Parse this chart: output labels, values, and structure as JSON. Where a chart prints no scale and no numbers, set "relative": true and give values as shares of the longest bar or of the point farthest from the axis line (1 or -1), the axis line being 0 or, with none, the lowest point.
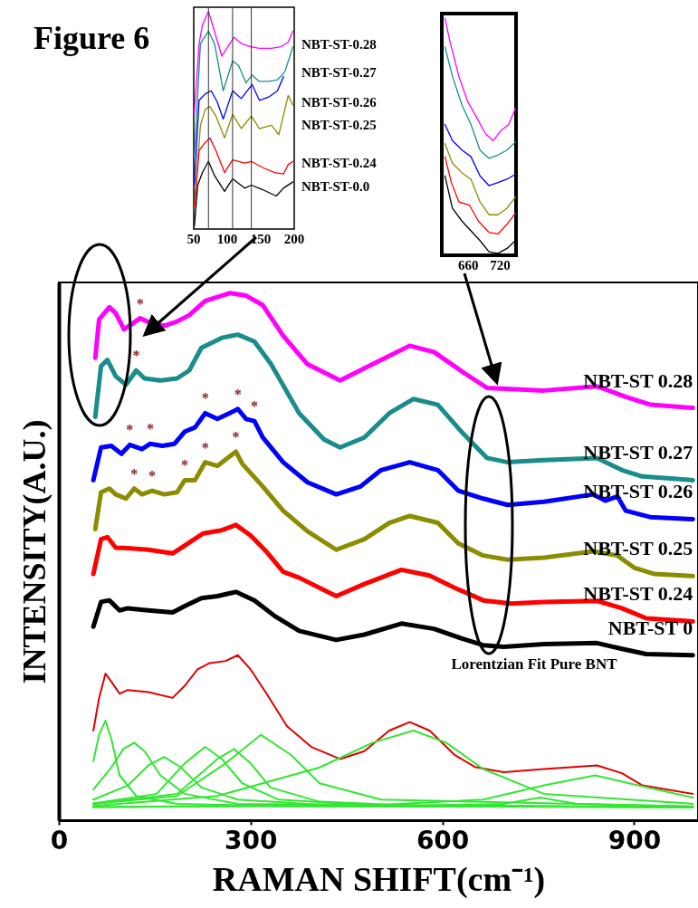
{
  "chart_data": [
    {
      "type": "line",
      "title": "Figure 6",
      "xlabel": "RAMAN SHIFT(cm⁻¹)",
      "ylabel": "INTENSITY(A.U.)",
      "relative": true,
      "xlim": [
        0,
        1000
      ],
      "xticks": [
        0,
        300,
        600,
        900
      ],
      "annotations": [
        "Lorentzian Fit Pure BNT",
        {
          "text": "*",
          "x": 127,
          "y": 0.952
        },
        {
          "text": "*",
          "x": 121,
          "y": 0.853
        },
        {
          "text": "*",
          "x": 111,
          "y": 0.712
        },
        {
          "text": "*",
          "x": 143,
          "y": 0.714
        },
        {
          "text": "*",
          "x": 229,
          "y": 0.772
        },
        {
          "text": "*",
          "x": 280,
          "y": 0.78
        },
        {
          "text": "*",
          "x": 306,
          "y": 0.757
        },
        {
          "text": "*",
          "x": 118,
          "y": 0.629
        },
        {
          "text": "*",
          "x": 146,
          "y": 0.625
        },
        {
          "text": "*",
          "x": 197,
          "y": 0.645
        },
        {
          "text": "*",
          "x": 229,
          "y": 0.679
        },
        {
          "text": "*",
          "x": 277,
          "y": 0.699
        }
      ],
      "series": [
        {
          "name": "NBT-ST 0.28",
          "color": "#ff00ff",
          "x": [
            57,
            63,
            79,
            89,
            102,
            127,
            146,
            165,
            185,
            204,
            229,
            268,
            293,
            319,
            351,
            389,
            440,
            491,
            549,
            587,
            632,
            670,
            759,
            842,
            887,
            926,
            992
          ],
          "values": [
            0.877,
            0.95,
            0.973,
            0.962,
            0.931,
            0.952,
            0.942,
            0.938,
            0.946,
            0.958,
            0.985,
            1.0,
            0.995,
            0.977,
            0.919,
            0.865,
            0.834,
            0.865,
            0.9,
            0.888,
            0.85,
            0.82,
            0.815,
            0.823,
            0.803,
            0.788,
            0.782
          ]
        },
        {
          "name": "NBT-ST 0.27",
          "color": "#1a8c8c",
          "x": [
            57,
            66,
            76,
            89,
            105,
            121,
            134,
            159,
            185,
            204,
            223,
            255,
            280,
            306,
            332,
            376,
            415,
            440,
            478,
            517,
            555,
            593,
            632,
            670,
            702,
            759,
            842,
            881,
            913,
            992
          ],
          "values": [
            0.765,
            0.861,
            0.873,
            0.842,
            0.826,
            0.853,
            0.838,
            0.834,
            0.838,
            0.853,
            0.896,
            0.915,
            0.921,
            0.908,
            0.865,
            0.772,
            0.722,
            0.707,
            0.726,
            0.772,
            0.799,
            0.788,
            0.734,
            0.687,
            0.679,
            0.683,
            0.687,
            0.664,
            0.652,
            0.645
          ]
        },
        {
          "name": "NBT-ST 0.26",
          "color": "#0000ff",
          "x": [
            54,
            66,
            82,
            98,
            111,
            130,
            143,
            162,
            181,
            197,
            213,
            229,
            248,
            274,
            280,
            293,
            306,
            319,
            351,
            389,
            434,
            472,
            504,
            549,
            593,
            625,
            664,
            702,
            759,
            836,
            855,
            874,
            887,
            925,
            992
          ],
          "values": [
            0.645,
            0.707,
            0.71,
            0.695,
            0.712,
            0.704,
            0.714,
            0.71,
            0.714,
            0.737,
            0.745,
            0.772,
            0.761,
            0.776,
            0.78,
            0.761,
            0.757,
            0.726,
            0.679,
            0.641,
            0.618,
            0.633,
            0.664,
            0.679,
            0.664,
            0.625,
            0.61,
            0.598,
            0.604,
            0.618,
            0.606,
            0.614,
            0.587,
            0.575,
            0.571
          ]
        },
        {
          "name": "NBT-ST 0.25",
          "color": "#8c8c00",
          "x": [
            57,
            66,
            79,
            89,
            105,
            118,
            130,
            146,
            165,
            185,
            197,
            213,
            229,
            248,
            277,
            287,
            319,
            351,
            389,
            434,
            478,
            517,
            549,
            593,
            625,
            664,
            702,
            759,
            836,
            874,
            900,
            932,
            992
          ],
          "values": [
            0.552,
            0.622,
            0.629,
            0.618,
            0.61,
            0.629,
            0.618,
            0.625,
            0.618,
            0.622,
            0.645,
            0.645,
            0.679,
            0.672,
            0.699,
            0.676,
            0.633,
            0.587,
            0.548,
            0.513,
            0.533,
            0.564,
            0.577,
            0.564,
            0.525,
            0.502,
            0.494,
            0.498,
            0.51,
            0.502,
            0.479,
            0.467,
            0.463
          ]
        },
        {
          "name": "NBT-ST 0.24",
          "color": "#ff0000",
          "x": [
            54,
            66,
            76,
            89,
            108,
            140,
            178,
            197,
            226,
            255,
            277,
            300,
            325,
            351,
            376,
            434,
            478,
            536,
            580,
            619,
            664,
            708,
            759,
            842,
            881,
            919,
            992
          ],
          "values": [
            0.467,
            0.533,
            0.537,
            0.517,
            0.516,
            0.513,
            0.506,
            0.521,
            0.544,
            0.55,
            0.56,
            0.54,
            0.509,
            0.471,
            0.46,
            0.425,
            0.448,
            0.475,
            0.464,
            0.441,
            0.417,
            0.411,
            0.414,
            0.416,
            0.402,
            0.383,
            0.377
          ]
        },
        {
          "name": "NBT-ST 0",
          "color": "#000000",
          "x": [
            54,
            66,
            79,
            95,
            108,
            140,
            178,
            197,
            223,
            248,
            277,
            306,
            338,
            376,
            434,
            478,
            536,
            587,
            632,
            664,
            696,
            759,
            842,
            881,
            919,
            992
          ],
          "values": [
            0.367,
            0.414,
            0.417,
            0.398,
            0.402,
            0.398,
            0.394,
            0.406,
            0.421,
            0.425,
            0.433,
            0.417,
            0.387,
            0.359,
            0.342,
            0.352,
            0.373,
            0.363,
            0.344,
            0.332,
            0.329,
            0.334,
            0.336,
            0.325,
            0.315,
            0.313
          ]
        },
        {
          "color": "#e00000",
          "x": [
            54,
            63,
            73,
            82,
            95,
            108,
            140,
            178,
            197,
            217,
            236,
            261,
            280,
            300,
            325,
            357,
            395,
            440,
            478,
            517,
            549,
            580,
            619,
            651,
            696,
            759,
            842,
            881,
            913,
            992
          ],
          "values": [
            0.17,
            0.232,
            0.278,
            0.263,
            0.24,
            0.247,
            0.243,
            0.232,
            0.255,
            0.286,
            0.298,
            0.302,
            0.313,
            0.286,
            0.24,
            0.178,
            0.139,
            0.116,
            0.131,
            0.17,
            0.186,
            0.17,
            0.124,
            0.101,
            0.091,
            0.097,
            0.104,
            0.089,
            0.066,
            0.05
          ]
        },
        {
          "color": "#33e633",
          "x": [
            54,
            63,
            73,
            82,
            95,
            121,
            185,
            376,
            992
          ],
          "values": [
            0.112,
            0.162,
            0.189,
            0.155,
            0.085,
            0.046,
            0.031,
            0.026,
            0.025
          ]
        },
        {
          "color": "#33e633",
          "x": [
            54,
            82,
            101,
            118,
            134,
            159,
            197,
            280,
            992
          ],
          "values": [
            0.058,
            0.1,
            0.135,
            0.147,
            0.131,
            0.085,
            0.05,
            0.031,
            0.025
          ]
        },
        {
          "color": "#33e633",
          "x": [
            54,
            108,
            140,
            165,
            191,
            223,
            280,
            440,
            992
          ],
          "values": [
            0.039,
            0.066,
            0.104,
            0.12,
            0.1,
            0.062,
            0.039,
            0.027,
            0.025
          ]
        },
        {
          "color": "#33e633",
          "x": [
            54,
            153,
            197,
            229,
            255,
            287,
            344,
            504,
            992
          ],
          "values": [
            0.032,
            0.05,
            0.108,
            0.139,
            0.116,
            0.07,
            0.039,
            0.027,
            0.025
          ]
        },
        {
          "color": "#33e633",
          "x": [
            54,
            185,
            248,
            274,
            300,
            331,
            408,
            568,
            992
          ],
          "values": [
            0.031,
            0.05,
            0.116,
            0.135,
            0.108,
            0.062,
            0.035,
            0.027,
            0.025
          ]
        },
        {
          "color": "#33e633",
          "x": [
            54,
            185,
            261,
            316,
            363,
            408,
            504,
            992
          ],
          "values": [
            0.031,
            0.046,
            0.108,
            0.162,
            0.124,
            0.07,
            0.039,
            0.026
          ]
        },
        {
          "color": "#33e633",
          "x": [
            54,
            248,
            408,
            491,
            555,
            606,
            664,
            759,
            992
          ],
          "values": [
            0.027,
            0.046,
            0.1,
            0.147,
            0.17,
            0.147,
            0.097,
            0.05,
            0.031
          ]
        },
        {
          "color": "#33e633",
          "x": [
            54,
            568,
            696,
            753,
            811,
            992
          ],
          "values": [
            0.025,
            0.028,
            0.031,
            0.043,
            0.031,
            0.026
          ]
        },
        {
          "color": "#33e633",
          "x": [
            54,
            504,
            664,
            759,
            839,
            906,
            992
          ],
          "values": [
            0.025,
            0.029,
            0.039,
            0.066,
            0.085,
            0.066,
            0.043
          ]
        }
      ]
    },
    {
      "type": "line",
      "relative": true,
      "xlim": [
        50,
        200
      ],
      "xticks": [
        50,
        100,
        150,
        200
      ],
      "ref_lines": [
        {
          "axis": "x",
          "value": 72
        },
        {
          "axis": "x",
          "value": 108
        },
        {
          "axis": "x",
          "value": 136
        }
      ],
      "series": [
        {
          "name": "NBT-ST-0.28",
          "color": "#ff00ff",
          "x": [
            51,
            58,
            63,
            72,
            78,
            92,
            101,
            110,
            121,
            135,
            148,
            166,
            180,
            191,
            198
          ],
          "values": [
            0.535,
            0.853,
            0.939,
            1.0,
            0.939,
            0.795,
            0.838,
            0.882,
            0.853,
            0.838,
            0.831,
            0.831,
            0.838,
            0.86,
            0.91
          ]
        },
        {
          "name": "NBT-ST-0.27",
          "color": "#1a8c8c",
          "x": [
            51,
            60,
            72,
            81,
            94,
            108,
            117,
            128,
            137,
            148,
            162,
            175,
            186,
            198
          ],
          "values": [
            0.332,
            0.853,
            0.91,
            0.853,
            0.636,
            0.773,
            0.751,
            0.672,
            0.708,
            0.679,
            0.679,
            0.686,
            0.723,
            0.838
          ]
        },
        {
          "name": "NBT-ST-0.26",
          "color": "#0000ff",
          "x": [
            51,
            58,
            67,
            76,
            85,
            94,
            108,
            121,
            137,
            148,
            162,
            175,
            184
          ],
          "values": [
            0.202,
            0.592,
            0.621,
            0.636,
            0.585,
            0.506,
            0.636,
            0.6,
            0.665,
            0.592,
            0.607,
            0.636,
            0.701
          ]
        },
        {
          "name": "NBT-ST-0.25",
          "color": "#8c8c00",
          "x": [
            51,
            60,
            67,
            74,
            83,
            96,
            108,
            121,
            136,
            148,
            166,
            177,
            191,
            198
          ],
          "values": [
            0.101,
            0.477,
            0.549,
            0.564,
            0.52,
            0.419,
            0.527,
            0.462,
            0.52,
            0.462,
            0.477,
            0.434,
            0.614,
            0.571
          ]
        },
        {
          "name": "NBT-ST-0.24",
          "color": "#ff0000",
          "x": [
            51,
            58,
            65,
            74,
            83,
            96,
            108,
            126,
            136,
            153,
            171,
            184,
            191,
            198
          ],
          "values": [
            0.101,
            0.361,
            0.39,
            0.419,
            0.361,
            0.26,
            0.318,
            0.303,
            0.311,
            0.282,
            0.26,
            0.253,
            0.296,
            0.311
          ]
        },
        {
          "name": "NBT-ST-0.0",
          "color": "#000000",
          "x": [
            51,
            56,
            63,
            72,
            81,
            96,
            108,
            126,
            136,
            153,
            173,
            184,
            198
          ],
          "values": [
            0.014,
            0.202,
            0.26,
            0.311,
            0.246,
            0.173,
            0.231,
            0.188,
            0.202,
            0.181,
            0.152,
            0.188,
            0.217
          ]
        }
      ]
    },
    {
      "type": "line",
      "relative": true,
      "xlim": [
        610,
        750
      ],
      "xticks": [
        660,
        720
      ],
      "series": [
        {
          "color": "#ff00ff",
          "x": [
            616,
            625,
            642,
            659,
            676,
            693,
            707,
            721,
            736,
            749
          ],
          "values": [
            1.0,
            0.906,
            0.756,
            0.648,
            0.58,
            0.511,
            0.484,
            0.525,
            0.552,
            0.62
          ]
        },
        {
          "color": "#1a8c8c",
          "x": [
            616,
            630,
            648,
            665,
            682,
            699,
            716,
            733,
            749
          ],
          "values": [
            0.879,
            0.756,
            0.634,
            0.552,
            0.444,
            0.409,
            0.423,
            0.444,
            0.478
          ]
        },
        {
          "color": "#0000ff",
          "x": [
            616,
            630,
            648,
            665,
            682,
            699,
            716,
            733,
            749
          ],
          "values": [
            0.552,
            0.484,
            0.444,
            0.416,
            0.335,
            0.294,
            0.307,
            0.321,
            0.342
          ]
        },
        {
          "color": "#8c8c00",
          "x": [
            616,
            630,
            648,
            665,
            682,
            699,
            716,
            733,
            749
          ],
          "values": [
            0.471,
            0.389,
            0.348,
            0.321,
            0.226,
            0.171,
            0.171,
            0.199,
            0.246
          ]
        },
        {
          "color": "#ff0000",
          "x": [
            616,
            628,
            642,
            662,
            679,
            699,
            716,
            733,
            749
          ],
          "values": [
            0.416,
            0.307,
            0.226,
            0.212,
            0.144,
            0.097,
            0.09,
            0.131,
            0.178
          ]
        },
        {
          "color": "#000000",
          "x": [
            616,
            630,
            648,
            665,
            682,
            699,
            716,
            733,
            749
          ],
          "values": [
            0.335,
            0.199,
            0.144,
            0.103,
            0.062,
            0.015,
            0.008,
            0.029,
            0.062
          ]
        }
      ]
    }
  ]
}
